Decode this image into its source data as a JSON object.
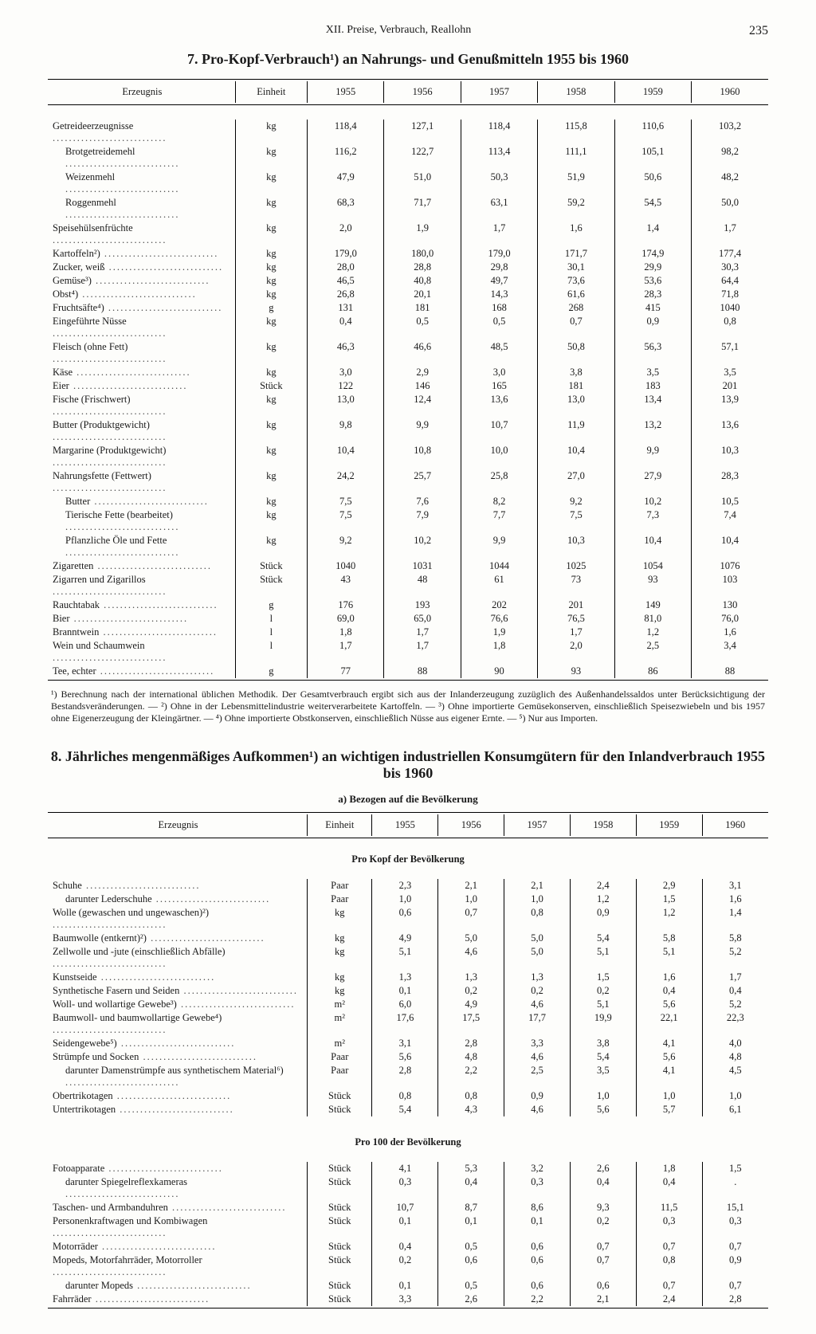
{
  "page_header": {
    "chapter": "XII. Preise, Verbrauch, Reallohn",
    "page_number": "235"
  },
  "table7": {
    "title": "7. Pro-Kopf-Verbrauch¹) an Nahrungs- und Genußmitteln 1955 bis 1960",
    "headers": {
      "product": "Erzeugnis",
      "unit": "Einheit",
      "years": [
        "1955",
        "1956",
        "1957",
        "1958",
        "1959",
        "1960"
      ]
    },
    "rows": [
      {
        "label": "Getreideerzeugnisse",
        "unit": "kg",
        "vals": [
          "118,4",
          "127,1",
          "118,4",
          "115,8",
          "110,6",
          "103,2"
        ]
      },
      {
        "label": "Brotgetreidemehl",
        "unit": "kg",
        "indent": true,
        "vals": [
          "116,2",
          "122,7",
          "113,4",
          "111,1",
          "105,1",
          "98,2"
        ]
      },
      {
        "label": "Weizenmehl",
        "unit": "kg",
        "indent": true,
        "vals": [
          "47,9",
          "51,0",
          "50,3",
          "51,9",
          "50,6",
          "48,2"
        ]
      },
      {
        "label": "Roggenmehl",
        "unit": "kg",
        "indent": true,
        "vals": [
          "68,3",
          "71,7",
          "63,1",
          "59,2",
          "54,5",
          "50,0"
        ]
      },
      {
        "label": "Speisehülsenfrüchte",
        "unit": "kg",
        "vals": [
          "2,0",
          "1,9",
          "1,7",
          "1,6",
          "1,4",
          "1,7"
        ]
      },
      {
        "label": "Kartoffeln²)",
        "unit": "kg",
        "vals": [
          "179,0",
          "180,0",
          "179,0",
          "171,7",
          "174,9",
          "177,4"
        ]
      },
      {
        "label": "Zucker, weiß",
        "unit": "kg",
        "vals": [
          "28,0",
          "28,8",
          "29,8",
          "30,1",
          "29,9",
          "30,3"
        ]
      },
      {
        "label": "Gemüse³)",
        "unit": "kg",
        "vals": [
          "46,5",
          "40,8",
          "49,7",
          "73,6",
          "53,6",
          "64,4"
        ]
      },
      {
        "label": "Obst⁴)",
        "unit": "kg",
        "vals": [
          "26,8",
          "20,1",
          "14,3",
          "61,6",
          "28,3",
          "71,8"
        ]
      },
      {
        "label": "Fruchtsäfte⁴)",
        "unit": "g",
        "vals": [
          "131",
          "181",
          "168",
          "268",
          "415",
          "1040"
        ]
      },
      {
        "label": "Eingeführte Nüsse",
        "unit": "kg",
        "vals": [
          "0,4",
          "0,5",
          "0,5",
          "0,7",
          "0,9",
          "0,8"
        ]
      },
      {
        "label": "Fleisch (ohne Fett)",
        "unit": "kg",
        "vals": [
          "46,3",
          "46,6",
          "48,5",
          "50,8",
          "56,3",
          "57,1"
        ]
      },
      {
        "label": "Käse",
        "unit": "kg",
        "vals": [
          "3,0",
          "2,9",
          "3,0",
          "3,8",
          "3,5",
          "3,5"
        ]
      },
      {
        "label": "Eier",
        "unit": "Stück",
        "vals": [
          "122",
          "146",
          "165",
          "181",
          "183",
          "201"
        ]
      },
      {
        "label": "Fische (Frischwert)",
        "unit": "kg",
        "vals": [
          "13,0",
          "12,4",
          "13,6",
          "13,0",
          "13,4",
          "13,9"
        ]
      },
      {
        "label": "Butter (Produktgewicht)",
        "unit": "kg",
        "vals": [
          "9,8",
          "9,9",
          "10,7",
          "11,9",
          "13,2",
          "13,6"
        ]
      },
      {
        "label": "Margarine (Produktgewicht)",
        "unit": "kg",
        "vals": [
          "10,4",
          "10,8",
          "10,0",
          "10,4",
          "9,9",
          "10,3"
        ]
      },
      {
        "label": "Nahrungsfette (Fettwert)",
        "unit": "kg",
        "vals": [
          "24,2",
          "25,7",
          "25,8",
          "27,0",
          "27,9",
          "28,3"
        ]
      },
      {
        "label": "Butter",
        "unit": "kg",
        "indent": true,
        "vals": [
          "7,5",
          "7,6",
          "8,2",
          "9,2",
          "10,2",
          "10,5"
        ]
      },
      {
        "label": "Tierische Fette (bearbeitet)",
        "unit": "kg",
        "indent": true,
        "vals": [
          "7,5",
          "7,9",
          "7,7",
          "7,5",
          "7,3",
          "7,4"
        ]
      },
      {
        "label": "Pflanzliche Öle und Fette",
        "unit": "kg",
        "indent": true,
        "vals": [
          "9,2",
          "10,2",
          "9,9",
          "10,3",
          "10,4",
          "10,4"
        ]
      },
      {
        "label": "Zigaretten",
        "unit": "Stück",
        "vals": [
          "1040",
          "1031",
          "1044",
          "1025",
          "1054",
          "1076"
        ]
      },
      {
        "label": "Zigarren und Zigarillos",
        "unit": "Stück",
        "vals": [
          "43",
          "48",
          "61",
          "73",
          "93",
          "103"
        ]
      },
      {
        "label": "Rauchtabak",
        "unit": "g",
        "vals": [
          "176",
          "193",
          "202",
          "201",
          "149",
          "130"
        ]
      },
      {
        "label": "Bier",
        "unit": "l",
        "vals": [
          "69,0",
          "65,0",
          "76,6",
          "76,5",
          "81,0",
          "76,0"
        ]
      },
      {
        "label": "Branntwein",
        "unit": "l",
        "vals": [
          "1,8",
          "1,7",
          "1,9",
          "1,7",
          "1,2",
          "1,6"
        ]
      },
      {
        "label": "Wein und Schaumwein",
        "unit": "l",
        "vals": [
          "1,7",
          "1,7",
          "1,8",
          "2,0",
          "2,5",
          "3,4"
        ]
      },
      {
        "label": "Tee, echter",
        "unit": "g",
        "vals": [
          "77",
          "88",
          "90",
          "93",
          "86",
          "88"
        ]
      }
    ],
    "footnotes": "¹) Berechnung nach der international üblichen Methodik. Der Gesamtverbrauch ergibt sich aus der Inlanderzeugung zuzüglich des Außenhandelssaldos unter Berücksichtigung der Bestandsveränderungen. — ²) Ohne in der Lebensmittelindustrie weiterverarbeitete Kartoffeln. — ³) Ohne importierte Gemüsekonserven, einschließlich Speisezwiebeln und bis 1957 ohne Eigenerzeugung der Kleingärtner. — ⁴) Ohne importierte Obstkonserven, einschließlich Nüsse aus eigener Ernte. — ⁵) Nur aus Importen."
  },
  "table8": {
    "title": "8. Jährliches mengenmäßiges Aufkommen¹) an wichtigen industriellen Konsumgütern für den Inlandverbrauch 1955 bis 1960",
    "subtitle": "a) Bezogen auf die Bevölkerung",
    "headers": {
      "product": "Erzeugnis",
      "unit": "Einheit",
      "years": [
        "1955",
        "1956",
        "1957",
        "1958",
        "1959",
        "1960"
      ]
    },
    "section_a": "Pro Kopf der Bevölkerung",
    "rows_a": [
      {
        "label": "Schuhe",
        "unit": "Paar",
        "vals": [
          "2,3",
          "2,1",
          "2,1",
          "2,4",
          "2,9",
          "3,1"
        ]
      },
      {
        "label": "darunter Lederschuhe",
        "unit": "Paar",
        "indent": true,
        "vals": [
          "1,0",
          "1,0",
          "1,0",
          "1,2",
          "1,5",
          "1,6"
        ]
      },
      {
        "label": "Wolle (gewaschen und ungewaschen)²)",
        "unit": "kg",
        "vals": [
          "0,6",
          "0,7",
          "0,8",
          "0,9",
          "1,2",
          "1,4"
        ]
      },
      {
        "label": "Baumwolle (entkernt)²)",
        "unit": "kg",
        "vals": [
          "4,9",
          "5,0",
          "5,0",
          "5,4",
          "5,8",
          "5,8"
        ]
      },
      {
        "label": "Zellwolle und -jute (einschließlich Abfälle)",
        "unit": "kg",
        "vals": [
          "5,1",
          "4,6",
          "5,0",
          "5,1",
          "5,1",
          "5,2"
        ]
      },
      {
        "label": "Kunstseide",
        "unit": "kg",
        "vals": [
          "1,3",
          "1,3",
          "1,3",
          "1,5",
          "1,6",
          "1,7"
        ]
      },
      {
        "label": "Synthetische Fasern und Seiden",
        "unit": "kg",
        "vals": [
          "0,1",
          "0,2",
          "0,2",
          "0,2",
          "0,4",
          "0,4"
        ]
      },
      {
        "label": "Woll- und wollartige Gewebe³)",
        "unit": "m²",
        "vals": [
          "6,0",
          "4,9",
          "4,6",
          "5,1",
          "5,6",
          "5,2"
        ]
      },
      {
        "label": "Baumwoll- und baumwollartige Gewebe⁴)",
        "unit": "m²",
        "vals": [
          "17,6",
          "17,5",
          "17,7",
          "19,9",
          "22,1",
          "22,3"
        ]
      },
      {
        "label": "Seidengewebe⁵)",
        "unit": "m²",
        "vals": [
          "3,1",
          "2,8",
          "3,3",
          "3,8",
          "4,1",
          "4,0"
        ]
      },
      {
        "label": "Strümpfe und Socken",
        "unit": "Paar",
        "vals": [
          "5,6",
          "4,8",
          "4,6",
          "5,4",
          "5,6",
          "4,8"
        ]
      },
      {
        "label": "darunter Damenstrümpfe aus synthetischem Material⁶)",
        "unit": "Paar",
        "indent": true,
        "vals": [
          "2,8",
          "2,2",
          "2,5",
          "3,5",
          "4,1",
          "4,5"
        ]
      },
      {
        "label": "Obertrikotagen",
        "unit": "Stück",
        "vals": [
          "0,8",
          "0,8",
          "0,9",
          "1,0",
          "1,0",
          "1,0"
        ]
      },
      {
        "label": "Untertrikotagen",
        "unit": "Stück",
        "vals": [
          "5,4",
          "4,3",
          "4,6",
          "5,6",
          "5,7",
          "6,1"
        ]
      }
    ],
    "section_b": "Pro 100 der Bevölkerung",
    "rows_b": [
      {
        "label": "Fotoapparate",
        "unit": "Stück",
        "vals": [
          "4,1",
          "5,3",
          "3,2",
          "2,6",
          "1,8",
          "1,5"
        ]
      },
      {
        "label": "darunter Spiegelreflexkameras",
        "unit": "Stück",
        "indent": true,
        "vals": [
          "0,3",
          "0,4",
          "0,3",
          "0,4",
          "0,4",
          "."
        ]
      },
      {
        "label": "Taschen- und Armbanduhren",
        "unit": "Stück",
        "vals": [
          "10,7",
          "8,7",
          "8,6",
          "9,3",
          "11,5",
          "15,1"
        ]
      },
      {
        "label": "Personenkraftwagen und Kombiwagen",
        "unit": "Stück",
        "vals": [
          "0,1",
          "0,1",
          "0,1",
          "0,2",
          "0,3",
          "0,3"
        ]
      },
      {
        "label": "Motorräder",
        "unit": "Stück",
        "vals": [
          "0,4",
          "0,5",
          "0,6",
          "0,7",
          "0,7",
          "0,7"
        ]
      },
      {
        "label": "Mopeds, Motorfahrräder, Motorroller",
        "unit": "Stück",
        "vals": [
          "0,2",
          "0,6",
          "0,6",
          "0,7",
          "0,8",
          "0,9"
        ]
      },
      {
        "label": "darunter Mopeds",
        "unit": "Stück",
        "indent": true,
        "vals": [
          "0,1",
          "0,5",
          "0,6",
          "0,6",
          "0,7",
          "0,7"
        ]
      },
      {
        "label": "Fahrräder",
        "unit": "Stück",
        "vals": [
          "3,3",
          "2,6",
          "2,2",
          "2,1",
          "2,4",
          "2,8"
        ]
      }
    ]
  }
}
